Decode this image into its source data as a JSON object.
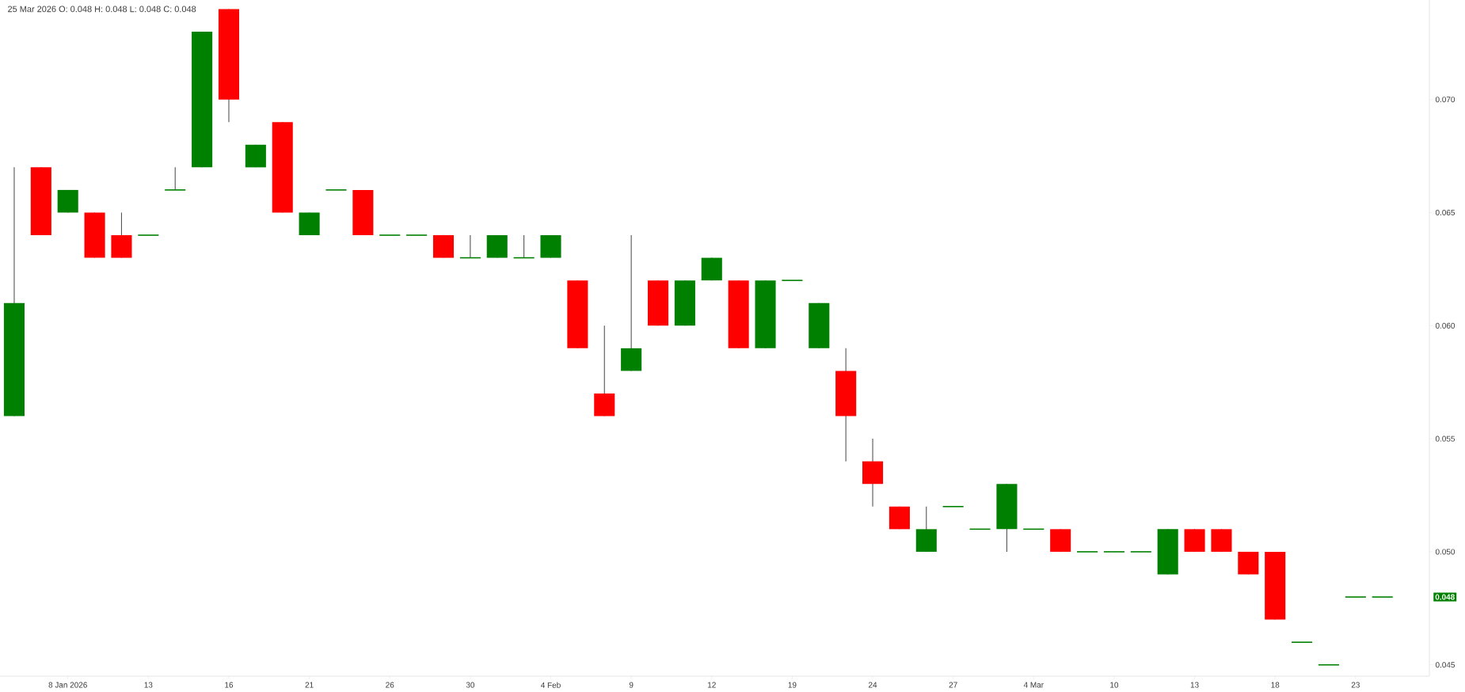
{
  "chart_data": {
    "type": "candlestick",
    "categories": [
      null,
      null,
      "8 Jan 2026",
      null,
      null,
      "13",
      null,
      null,
      "16",
      null,
      null,
      "21",
      null,
      null,
      "26",
      null,
      null,
      "30",
      null,
      null,
      "4 Feb",
      null,
      null,
      "9",
      null,
      null,
      "12",
      null,
      null,
      "19",
      null,
      null,
      "24",
      null,
      null,
      "27",
      null,
      null,
      "4 Mar",
      null,
      null,
      "10",
      null,
      null,
      "13",
      null,
      null,
      "18",
      null,
      null,
      "23",
      null
    ],
    "ohlc": [
      [
        0.056,
        0.067,
        0.056,
        0.061
      ],
      [
        0.067,
        0.067,
        0.064,
        0.064
      ],
      [
        0.065,
        0.066,
        0.065,
        0.066
      ],
      [
        0.065,
        0.065,
        0.063,
        0.063
      ],
      [
        0.064,
        0.065,
        0.063,
        0.063
      ],
      [
        0.064,
        0.064,
        0.064,
        0.064
      ],
      [
        0.066,
        0.067,
        0.066,
        0.066
      ],
      [
        0.067,
        0.073,
        0.067,
        0.073
      ],
      [
        0.074,
        0.074,
        0.069,
        0.07
      ],
      [
        0.067,
        0.068,
        0.067,
        0.068
      ],
      [
        0.069,
        0.069,
        0.065,
        0.065
      ],
      [
        0.064,
        0.065,
        0.064,
        0.065
      ],
      [
        0.066,
        0.066,
        0.066,
        0.066
      ],
      [
        0.066,
        0.066,
        0.064,
        0.064
      ],
      [
        0.064,
        0.064,
        0.064,
        0.064
      ],
      [
        0.064,
        0.064,
        0.064,
        0.064
      ],
      [
        0.064,
        0.064,
        0.063,
        0.063
      ],
      [
        0.063,
        0.064,
        0.063,
        0.063
      ],
      [
        0.063,
        0.064,
        0.063,
        0.064
      ],
      [
        0.063,
        0.064,
        0.063,
        0.063
      ],
      [
        0.063,
        0.064,
        0.063,
        0.064
      ],
      [
        0.062,
        0.062,
        0.059,
        0.059
      ],
      [
        0.057,
        0.06,
        0.056,
        0.056
      ],
      [
        0.058,
        0.064,
        0.058,
        0.059
      ],
      [
        0.062,
        0.062,
        0.06,
        0.06
      ],
      [
        0.06,
        0.062,
        0.06,
        0.062
      ],
      [
        0.062,
        0.063,
        0.062,
        0.063
      ],
      [
        0.062,
        0.062,
        0.059,
        0.059
      ],
      [
        0.059,
        0.062,
        0.059,
        0.062
      ],
      [
        0.062,
        0.062,
        0.062,
        0.062
      ],
      [
        0.059,
        0.061,
        0.059,
        0.061
      ],
      [
        0.058,
        0.059,
        0.054,
        0.056
      ],
      [
        0.054,
        0.055,
        0.052,
        0.053
      ],
      [
        0.052,
        0.052,
        0.051,
        0.051
      ],
      [
        0.05,
        0.052,
        0.05,
        0.051
      ],
      [
        0.052,
        0.052,
        0.052,
        0.052
      ],
      [
        0.051,
        0.051,
        0.051,
        0.051
      ],
      [
        0.051,
        0.053,
        0.05,
        0.053
      ],
      [
        0.051,
        0.051,
        0.051,
        0.051
      ],
      [
        0.051,
        0.051,
        0.05,
        0.05
      ],
      [
        0.05,
        0.05,
        0.05,
        0.05
      ],
      [
        0.05,
        0.05,
        0.05,
        0.05
      ],
      [
        0.05,
        0.05,
        0.05,
        0.05
      ],
      [
        0.049,
        0.051,
        0.049,
        0.051
      ],
      [
        0.051,
        0.051,
        0.05,
        0.05
      ],
      [
        0.051,
        0.051,
        0.05,
        0.05
      ],
      [
        0.05,
        0.05,
        0.049,
        0.049
      ],
      [
        0.05,
        0.05,
        0.047,
        0.047
      ],
      [
        0.046,
        0.046,
        0.046,
        0.046
      ],
      [
        0.045,
        0.045,
        0.045,
        0.045
      ],
      [
        0.048,
        0.048,
        0.048,
        0.048
      ],
      [
        0.048,
        0.048,
        0.048,
        0.048
      ]
    ],
    "colors": [
      "#008000",
      "#ff0000",
      "#008000",
      "#ff0000",
      "#ff0000",
      "#008000",
      "#008000",
      "#008000",
      "#ff0000",
      "#008000",
      "#ff0000",
      "#008000",
      "#008000",
      "#ff0000",
      "#008000",
      "#008000",
      "#ff0000",
      "#008000",
      "#008000",
      "#008000",
      "#008000",
      "#ff0000",
      "#ff0000",
      "#008000",
      "#ff0000",
      "#008000",
      "#008000",
      "#ff0000",
      "#008000",
      "#008000",
      "#008000",
      "#ff0000",
      "#ff0000",
      "#ff0000",
      "#008000",
      "#008000",
      "#008000",
      "#008000",
      "#008000",
      "#ff0000",
      "#008000",
      "#008000",
      "#008000",
      "#008000",
      "#ff0000",
      "#ff0000",
      "#ff0000",
      "#ff0000",
      "#008000",
      "#008000",
      "#008000",
      "#008000"
    ],
    "ylim": [
      0.0445,
      0.0744
    ],
    "yticks": [
      {
        "value": 0.045,
        "label": "0.045"
      },
      {
        "value": 0.05,
        "label": "0.050"
      },
      {
        "value": 0.055,
        "label": "0.055"
      },
      {
        "value": 0.06,
        "label": "0.060"
      },
      {
        "value": 0.065,
        "label": "0.065"
      },
      {
        "value": 0.07,
        "label": "0.070"
      }
    ],
    "annotations": [
      "25 Mar 2026  O: 0.048  H: 0.048  L: 0.048  C: 0.048",
      "0.048"
    ]
  }
}
